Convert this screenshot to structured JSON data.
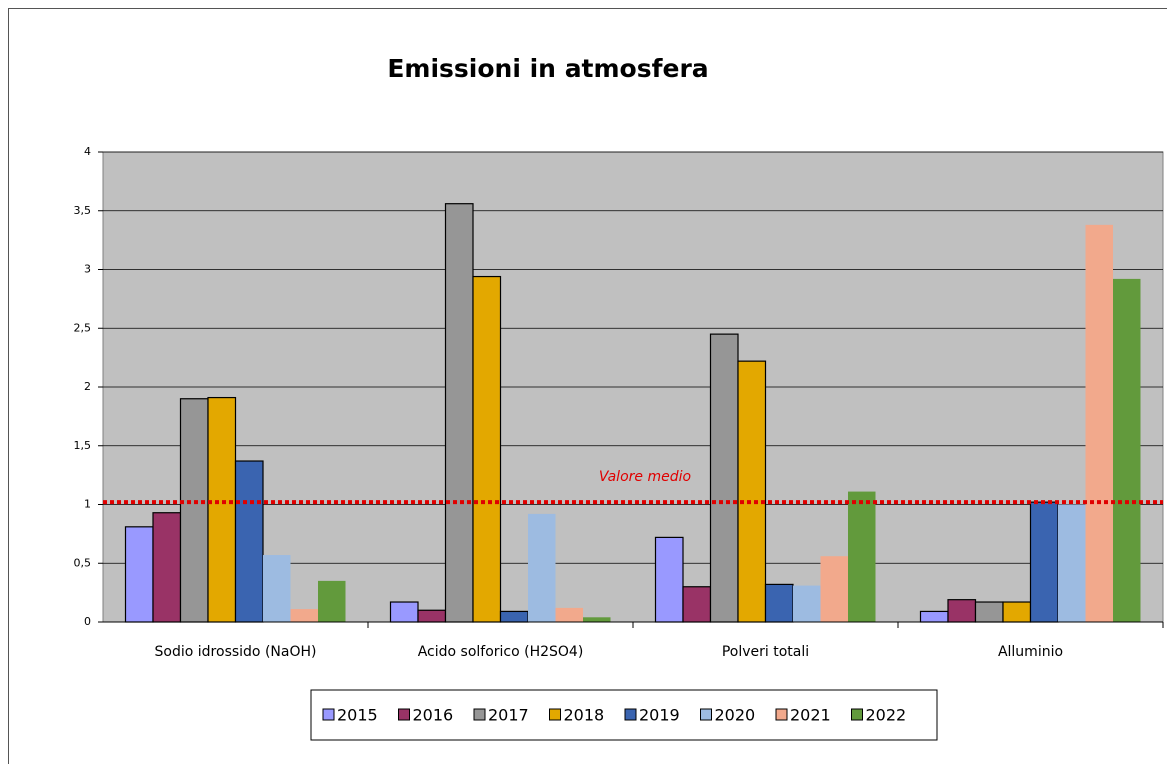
{
  "chart_data": {
    "type": "bar",
    "title": "Emissioni in atmosfera",
    "categories": [
      "Sodio idrossido (NaOH)",
      "Acido solforico (H2SO4)",
      "Polveri totali",
      "Alluminio"
    ],
    "series": [
      {
        "name": "2015",
        "color": "#9999ff",
        "values": [
          0.81,
          0.17,
          0.72,
          0.09
        ]
      },
      {
        "name": "2016",
        "color": "#993366",
        "values": [
          0.93,
          0.1,
          0.3,
          0.19
        ]
      },
      {
        "name": "2017",
        "color": "#969696",
        "values": [
          1.9,
          3.56,
          2.45,
          0.17
        ]
      },
      {
        "name": "2018",
        "color": "#e3a800",
        "values": [
          1.91,
          2.94,
          2.22,
          0.17
        ]
      },
      {
        "name": "2019",
        "color": "#3a64b0",
        "values": [
          1.37,
          0.09,
          0.32,
          1.02
        ]
      },
      {
        "name": "2020",
        "color": "#9dbbe1",
        "values": [
          0.57,
          0.92,
          0.31,
          1.0
        ]
      },
      {
        "name": "2021",
        "color": "#f2a98c",
        "values": [
          0.11,
          0.12,
          0.56,
          3.38
        ]
      },
      {
        "name": "2022",
        "color": "#629a3c",
        "values": [
          0.35,
          0.04,
          1.11,
          2.92
        ]
      }
    ],
    "reference_line": {
      "value": 1.02,
      "label": "Valore medio",
      "color": "#e00000"
    },
    "ylim": [
      0,
      4
    ],
    "yticks": [
      0,
      {
        "value": 0.5,
        "label": "0,5"
      },
      1,
      {
        "value": 1.5,
        "label": "1,5"
      },
      2,
      {
        "value": 2.5,
        "label": "2,5"
      },
      3,
      {
        "value": 3.5,
        "label": "3,5"
      },
      4
    ],
    "grid": true,
    "legend": "bottom"
  }
}
